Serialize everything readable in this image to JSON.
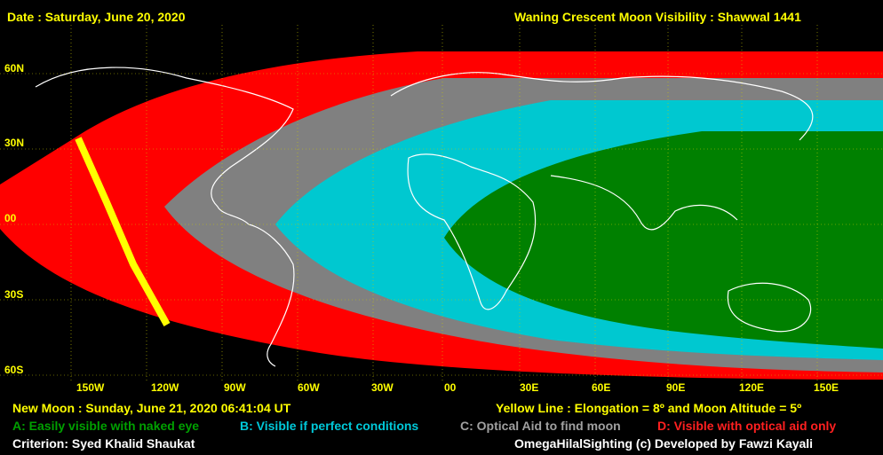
{
  "header": {
    "date": "Date : Saturday, June 20, 2020",
    "title": "Waning Crescent Moon Visibility : Shawwal 1441"
  },
  "map": {
    "lat_labels": [
      "60N",
      "30N",
      "00",
      "30S",
      "60S"
    ],
    "lon_labels": [
      "150W",
      "120W",
      "90W",
      "60W",
      "30W",
      "00",
      "30E",
      "60E",
      "90E",
      "120E",
      "150E"
    ],
    "zone_colors": {
      "A": "#008000",
      "B": "#00c8d0",
      "C": "#808080",
      "D": "#ff0000",
      "yellow_line": "#ffff00",
      "grid": "#c8c800",
      "coast": "#ffffff"
    }
  },
  "footer": {
    "new_moon": "New Moon : Sunday, June 21, 2020  06:41:04  UT",
    "yellow_line": "Yellow Line : Elongation = 8º  and Moon Altitude = 5º",
    "legend_a": "A: Easily visible with naked eye",
    "legend_b": "B: Visible if perfect conditions",
    "legend_c": "C: Optical Aid to find moon",
    "legend_d": "D: Visible with optical aid only",
    "criterion": "Criterion: Syed Khalid Shaukat",
    "credit": "OmegaHilalSighting  (c)  Developed by Fawzi Kayali"
  }
}
